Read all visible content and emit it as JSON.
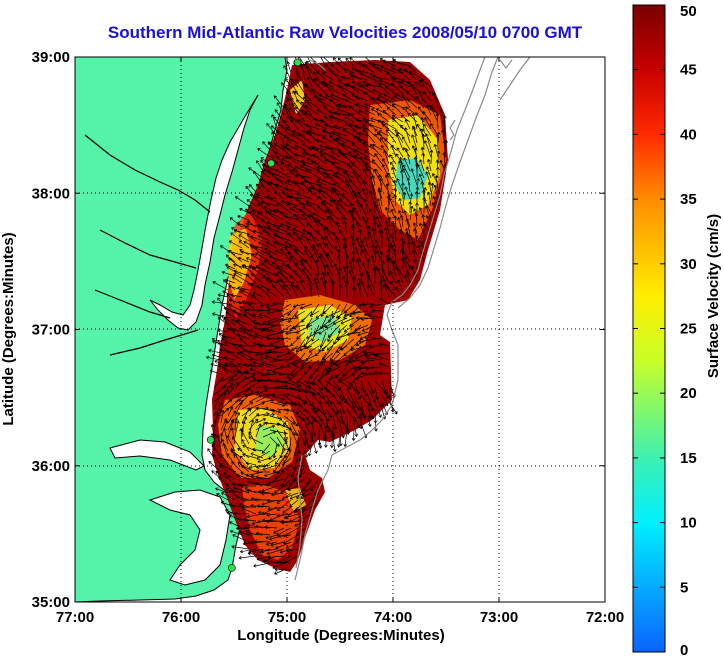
{
  "map": {
    "title": "Southern Mid-Atlantic Raw Velocities 2008/05/10 0700 GMT",
    "xlabel": "Longitude (Degrees:Minutes)",
    "ylabel": "Latitude (Degrees:Minutes)",
    "x_ticks": [
      {
        "value": -77,
        "label": "77:00"
      },
      {
        "value": -76,
        "label": "76:00"
      },
      {
        "value": -75,
        "label": "75:00"
      },
      {
        "value": -74,
        "label": "74:00"
      },
      {
        "value": -73,
        "label": "73:00"
      },
      {
        "value": -72,
        "label": "72:00"
      }
    ],
    "y_ticks": [
      {
        "value": 35,
        "label": "35:00"
      },
      {
        "value": 36,
        "label": "36:00"
      },
      {
        "value": 37,
        "label": "37:00"
      },
      {
        "value": 38,
        "label": "38:00"
      },
      {
        "value": 39,
        "label": "39:00"
      }
    ],
    "lon_range": [
      -77,
      -72
    ],
    "lat_range": [
      35,
      39
    ],
    "grid": "dotted",
    "land_color": "#55f2aa",
    "coastline_color": "#000000",
    "bathymetry_color": "#8a8a8a",
    "radar_site_color": "#2ee04a",
    "radar_sites": [
      {
        "lon": -74.9,
        "lat": 38.96
      },
      {
        "lon": -75.15,
        "lat": 38.22
      },
      {
        "lon": -75.72,
        "lat": 36.19
      },
      {
        "lon": -75.52,
        "lat": 35.25
      }
    ]
  },
  "colorbar": {
    "label": "Surface Velocity (cm/s)",
    "range": [
      0,
      50
    ],
    "ticks": [
      {
        "value": 0,
        "label": "0"
      },
      {
        "value": 5,
        "label": "5"
      },
      {
        "value": 10,
        "label": "10"
      },
      {
        "value": 15,
        "label": "15"
      },
      {
        "value": 20,
        "label": "20"
      },
      {
        "value": 25,
        "label": "25"
      },
      {
        "value": 30,
        "label": "30"
      },
      {
        "value": 35,
        "label": "35"
      },
      {
        "value": 40,
        "label": "40"
      },
      {
        "value": 45,
        "label": "45"
      },
      {
        "value": 50,
        "label": "50"
      }
    ],
    "colormap": "jet"
  }
}
